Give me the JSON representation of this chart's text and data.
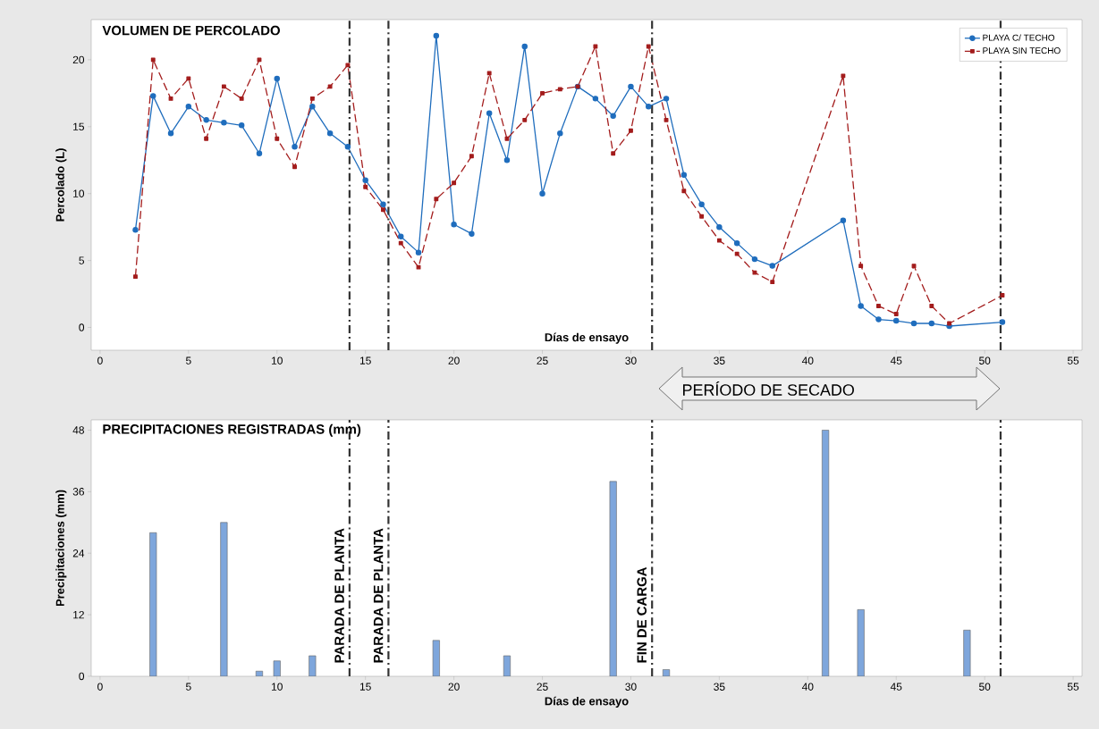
{
  "chart_data": [
    {
      "type": "line",
      "title": "VOLUMEN DE PERCOLADO",
      "xlabel": "Días de ensayo",
      "ylabel": "Percolado (L)",
      "legend": "top right",
      "xlim": [
        -0.5,
        55.5
      ],
      "ylim": [
        -1.7,
        23
      ],
      "xticks": [
        0,
        5,
        10,
        15,
        20,
        25,
        30,
        35,
        40,
        45,
        50,
        55
      ],
      "yticks": [
        0,
        5,
        10,
        15,
        20
      ],
      "series": [
        {
          "name": "PLAYA C/ TECHO",
          "color": "#1f6dbd",
          "marker": "circle",
          "line_style": "solid",
          "x": [
            2,
            3,
            4,
            5,
            6,
            7,
            8,
            9,
            10,
            11,
            12,
            13,
            14,
            15,
            16,
            17,
            18,
            19,
            20,
            21,
            22,
            23,
            24,
            25,
            26,
            27,
            28,
            29,
            30,
            31,
            32,
            33,
            34,
            35,
            36,
            37,
            38,
            42,
            43,
            44,
            45,
            46,
            47,
            48,
            51
          ],
          "values": [
            7.3,
            17.3,
            14.5,
            16.5,
            15.5,
            15.3,
            15.1,
            13.0,
            18.6,
            13.5,
            16.5,
            14.5,
            13.5,
            11.0,
            9.2,
            6.8,
            5.6,
            21.8,
            7.7,
            7.0,
            16.0,
            12.5,
            21.0,
            10.0,
            14.5,
            18.0,
            17.1,
            15.8,
            18.0,
            16.5,
            17.1,
            11.4,
            9.2,
            7.5,
            6.3,
            5.1,
            4.6,
            8.0,
            1.6,
            0.6,
            0.5,
            0.3,
            0.3,
            0.1,
            0.4
          ]
        },
        {
          "name": "PLAYA SIN TECHO",
          "color": "#a31c1c",
          "marker": "square",
          "line_style": "dashed",
          "x": [
            2,
            3,
            4,
            5,
            6,
            7,
            8,
            9,
            10,
            11,
            12,
            13,
            14,
            15,
            16,
            17,
            18,
            19,
            20,
            21,
            22,
            23,
            24,
            25,
            26,
            27,
            28,
            29,
            30,
            31,
            32,
            33,
            34,
            35,
            36,
            37,
            38,
            42,
            43,
            44,
            45,
            46,
            47,
            48,
            51
          ],
          "values": [
            3.8,
            20.0,
            17.1,
            18.6,
            14.1,
            18.0,
            17.1,
            20.0,
            14.1,
            12.0,
            17.1,
            18.0,
            19.6,
            10.5,
            8.8,
            6.3,
            4.5,
            9.6,
            10.8,
            12.8,
            19.0,
            14.1,
            15.5,
            17.5,
            17.8,
            18.0,
            21.0,
            13.0,
            14.7,
            21.0,
            15.5,
            10.2,
            8.3,
            6.5,
            5.5,
            4.1,
            3.4,
            18.8,
            4.6,
            1.6,
            1.0,
            4.6,
            1.6,
            0.3,
            2.4
          ]
        }
      ],
      "ref_lines": [
        {
          "axis": "x",
          "value": 14.1,
          "color": "#333333"
        },
        {
          "axis": "x",
          "value": 16.3,
          "color": "#333333"
        },
        {
          "axis": "x",
          "value": 31.2,
          "color": "#333333"
        },
        {
          "axis": "x",
          "value": 50.9,
          "color": "#333333"
        }
      ],
      "annotations": [
        "PERÍODO DE SECADO"
      ]
    },
    {
      "type": "bar",
      "title": "PRECIPITACIONES REGISTRADAS (mm)",
      "xlabel": "Días de ensayo",
      "ylabel": "Precipitaciones (mm)",
      "color": "#7ea6dc",
      "xlim": [
        -0.5,
        55.5
      ],
      "ylim": [
        0,
        50
      ],
      "xticks": [
        0,
        5,
        10,
        15,
        20,
        25,
        30,
        35,
        40,
        45,
        50,
        55
      ],
      "yticks": [
        0,
        12,
        24,
        36,
        48
      ],
      "x": [
        3,
        7,
        9,
        10,
        12,
        19,
        23,
        29,
        32,
        41,
        43,
        49
      ],
      "values": [
        28,
        30,
        1,
        3,
        4,
        7,
        4,
        38,
        1.3,
        48,
        13,
        9
      ],
      "ref_lines": [
        {
          "axis": "x",
          "value": 14.1,
          "label": "PARADA DE PLANTA",
          "color": "#333333"
        },
        {
          "axis": "x",
          "value": 16.3,
          "label": "PARADA DE PLANTA",
          "color": "#333333"
        },
        {
          "axis": "x",
          "value": 31.2,
          "label": "FIN DE CARGA",
          "color": "#333333"
        },
        {
          "axis": "x",
          "value": 50.9,
          "label": null,
          "color": "#333333"
        }
      ]
    }
  ]
}
